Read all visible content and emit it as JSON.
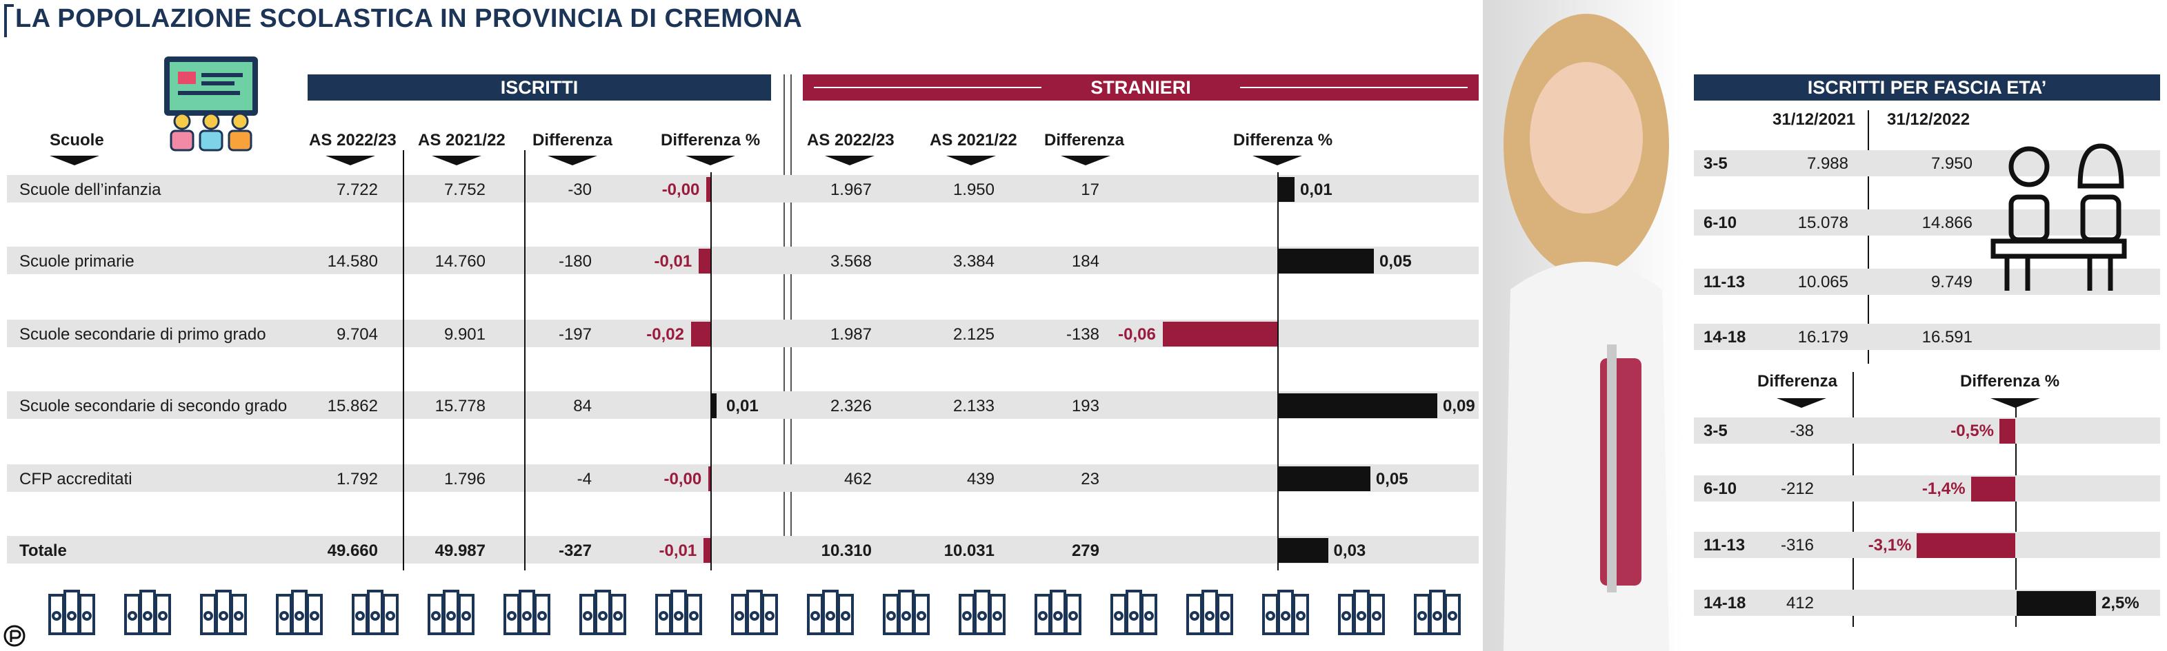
{
  "title": "LA POPOLAZIONE SCOLASTICA IN PROVINCIA DI CREMONA",
  "headers": {
    "iscritti": "ISCRITTI",
    "stranieri": "STRANIERI",
    "fascia": "ISCRITTI PER FASCIA ETA’"
  },
  "columns": {
    "scuole": "Scuole",
    "as2223": "AS 2022/23",
    "as2122": "AS 2021/22",
    "diff": "Differenza",
    "diffpct": "Differenza %",
    "d2021": "31/12/2021",
    "d2022": "31/12/2022"
  },
  "colors": {
    "navy": "#1c3557",
    "crimson": "#9b1b3d",
    "black": "#111111",
    "band": "#e4e4e4"
  },
  "icons": [
    "classroom-icon",
    "students-desk-icon",
    "books-icon",
    "publisher-logo"
  ],
  "chart_data": [
    {
      "type": "table",
      "title": "ISCRITTI",
      "rows": [
        {
          "label": "Scuole dell’infanzia",
          "a2223": "7.722",
          "a2122": "7.752",
          "diff": "-30",
          "pct_label": "-0,00",
          "pct": -0.004
        },
        {
          "label": "Scuole primarie",
          "a2223": "14.580",
          "a2122": "14.760",
          "diff": "-180",
          "pct_label": "-0,01",
          "pct": -0.012
        },
        {
          "label": "Scuole secondarie di primo grado",
          "a2223": "9.704",
          "a2122": "9.901",
          "diff": "-197",
          "pct_label": "-0,02",
          "pct": -0.02
        },
        {
          "label": "Scuole secondarie di secondo grado",
          "a2223": "15.862",
          "a2122": "15.778",
          "diff": "84",
          "pct_label": "0,01",
          "pct": 0.005
        },
        {
          "label": "CFP accreditati",
          "a2223": "1.792",
          "a2122": "1.796",
          "diff": "-4",
          "pct_label": "-0,00",
          "pct": -0.002
        },
        {
          "label": "Totale",
          "a2223": "49.660",
          "a2122": "49.987",
          "diff": "-327",
          "pct_label": "-0,01",
          "pct": -0.007,
          "total": true
        }
      ]
    },
    {
      "type": "table",
      "title": "STRANIERI",
      "rows": [
        {
          "a2223": "1.967",
          "a2122": "1.950",
          "diff": "17",
          "pct_label": "0,01",
          "pct": 0.009
        },
        {
          "a2223": "3.568",
          "a2122": "3.384",
          "diff": "184",
          "pct_label": "0,05",
          "pct": 0.054
        },
        {
          "a2223": "1.987",
          "a2122": "2.125",
          "diff": "-138",
          "pct_label": "-0,06",
          "pct": -0.065
        },
        {
          "a2223": "2.326",
          "a2122": "2.133",
          "diff": "193",
          "pct_label": "0,09",
          "pct": 0.09
        },
        {
          "a2223": "462",
          "a2122": "439",
          "diff": "23",
          "pct_label": "0,05",
          "pct": 0.052
        },
        {
          "a2223": "10.310",
          "a2122": "10.031",
          "diff": "279",
          "pct_label": "0,03",
          "pct": 0.028,
          "total": true
        }
      ]
    },
    {
      "type": "table",
      "title": "ISCRITTI PER FASCIA ETA’",
      "rows": [
        {
          "label": "3-5",
          "d2021": "7.988",
          "d2022": "7.950"
        },
        {
          "label": "6-10",
          "d2021": "15.078",
          "d2022": "14.866"
        },
        {
          "label": "11-13",
          "d2021": "10.065",
          "d2022": "9.749"
        },
        {
          "label": "14-18",
          "d2021": "16.179",
          "d2022": "16.591"
        }
      ]
    },
    {
      "type": "bar",
      "rows": [
        {
          "label": "3-5",
          "diff": "-38",
          "pct_label": "-0,5%",
          "pct": -0.5
        },
        {
          "label": "6-10",
          "diff": "-212",
          "pct_label": "-1,4%",
          "pct": -1.4
        },
        {
          "label": "11-13",
          "diff": "-316",
          "pct_label": "-3,1%",
          "pct": -3.1
        },
        {
          "label": "14-18",
          "diff": "412",
          "pct_label": "2,5%",
          "pct": 2.5
        }
      ]
    }
  ]
}
